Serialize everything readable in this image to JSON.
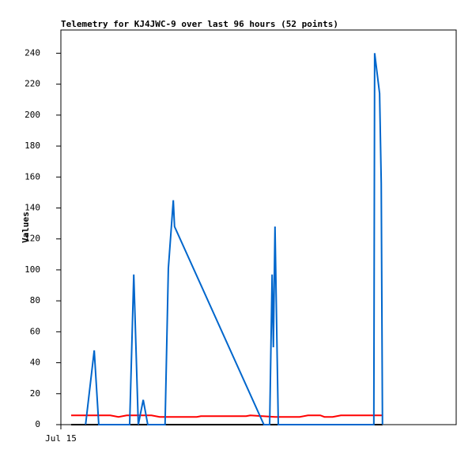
{
  "chart_data": {
    "type": "line",
    "title": "Telemetry for KJ4JWC-9 over last 96 hours (52 points)",
    "y_label": "Values",
    "xlim": [
      0,
      96
    ],
    "xticks": [
      {
        "value": 0,
        "label": "Jul 15"
      }
    ],
    "ylim": [
      0,
      255
    ],
    "yticks": [
      0,
      20,
      40,
      60,
      80,
      100,
      120,
      140,
      160,
      180,
      200,
      220,
      240
    ],
    "series": [
      {
        "color": "#000000",
        "x": [
          2.5,
          78.1
        ],
        "values": [
          0,
          0
        ]
      },
      {
        "color": "#ff0000",
        "x": [
          2.5,
          12,
          14,
          16,
          22,
          24,
          33,
          34,
          45,
          46,
          52,
          58,
          60,
          63,
          64,
          66,
          68,
          78.1
        ],
        "values": [
          6,
          6,
          5,
          6,
          6,
          5,
          5,
          5.5,
          5.5,
          6,
          5,
          5,
          6,
          6,
          5,
          5,
          6,
          6
        ]
      },
      {
        "color": "#0066cc",
        "x": [
          6.0,
          8.1,
          9.2,
          16.7,
          17.7,
          18.8,
          20.0,
          21.1,
          25.3,
          26.1,
          27.3,
          27.6,
          49.3,
          50.7,
          51.3,
          51.6,
          52.0,
          52.8,
          76.0,
          76.2,
          77.4,
          77.8,
          78.1
        ],
        "values": [
          0,
          48,
          0,
          0,
          97,
          0,
          16,
          0,
          0,
          101,
          145,
          128,
          0,
          0,
          97,
          50,
          128,
          0,
          0,
          240,
          214,
          156,
          0
        ]
      }
    ]
  }
}
